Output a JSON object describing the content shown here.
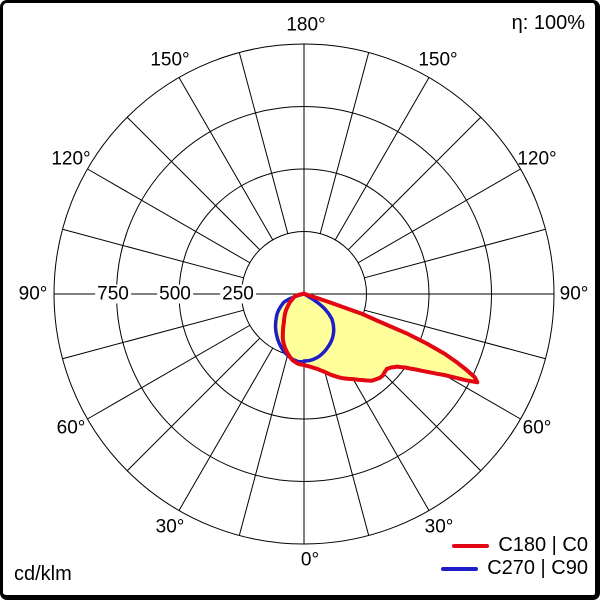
{
  "header": {
    "efficiency": "η: 100%"
  },
  "footer": {
    "unit": "cd/klm"
  },
  "legend": {
    "items": [
      {
        "label": "C180 | C0",
        "color": "#e30613"
      },
      {
        "label": "C270 | C90",
        "color": "#1e1ec8"
      }
    ]
  },
  "polar": {
    "angle_labels": [
      "180°",
      "150°",
      "120°",
      "90°",
      "60°",
      "30°",
      "0°"
    ],
    "scale_labels": [
      "750",
      "500",
      "250"
    ],
    "grid_color": "#000000",
    "fill_color": "#ffff9c"
  },
  "chart_data": {
    "type": "polar-photometric",
    "unit": "cd/klm",
    "efficiency_label": "η: 100%",
    "radial_axis": {
      "ticks": [
        250,
        500,
        750,
        1000
      ],
      "max": 1000
    },
    "angle_grid_step_deg": 15,
    "angle_tick_labels_deg": [
      0,
      30,
      60,
      90,
      120,
      150,
      180
    ],
    "legend_position": "bottom-right",
    "series": [
      {
        "name": "C180 | C0",
        "color": "#e30613",
        "fill": "#ffff9c",
        "stroke_width": 4,
        "planes": {
          "right": "C0",
          "left": "C180"
        },
        "right_points_gamma_cd": [
          [
            0,
            284
          ],
          [
            5,
            292
          ],
          [
            10,
            304
          ],
          [
            15,
            323
          ],
          [
            20,
            348
          ],
          [
            25,
            372
          ],
          [
            30,
            393
          ],
          [
            34,
            415
          ],
          [
            38,
            440
          ],
          [
            42,
            452
          ],
          [
            44,
            454
          ],
          [
            46,
            449
          ],
          [
            48,
            447
          ],
          [
            50,
            457
          ],
          [
            52,
            472
          ],
          [
            54,
            500
          ],
          [
            56,
            540
          ],
          [
            58,
            590
          ],
          [
            60,
            648
          ],
          [
            61,
            690
          ],
          [
            62,
            735
          ],
          [
            63,
            778
          ],
          [
            64,
            760
          ],
          [
            65,
            715
          ],
          [
            66,
            665
          ],
          [
            67,
            610
          ],
          [
            68,
            530
          ],
          [
            69,
            440
          ],
          [
            70,
            310
          ],
          [
            71,
            250
          ],
          [
            72,
            110
          ],
          [
            73,
            55
          ],
          [
            74,
            22
          ],
          [
            76,
            10
          ],
          [
            80,
            6
          ],
          [
            90,
            4
          ],
          [
            105,
            2
          ],
          [
            130,
            1
          ],
          [
            160,
            1
          ],
          [
            180,
            0
          ]
        ],
        "left_points_gamma_cd": [
          [
            0,
            284
          ],
          [
            5,
            280
          ],
          [
            10,
            268
          ],
          [
            15,
            248
          ],
          [
            20,
            226
          ],
          [
            25,
            200
          ],
          [
            30,
            168
          ],
          [
            35,
            140
          ],
          [
            40,
            122
          ],
          [
            45,
            106
          ],
          [
            50,
            90
          ],
          [
            55,
            76
          ],
          [
            60,
            64
          ],
          [
            65,
            52
          ],
          [
            70,
            45
          ],
          [
            74,
            40
          ],
          [
            78,
            30
          ],
          [
            82,
            18
          ],
          [
            86,
            10
          ],
          [
            90,
            6
          ],
          [
            110,
            3
          ],
          [
            140,
            1
          ],
          [
            180,
            0
          ]
        ]
      },
      {
        "name": "C270 | C90",
        "color": "#1e1ec8",
        "fill": "#ffff9c",
        "stroke_width": 3.5,
        "planes": {
          "right": "C90",
          "left": "C270"
        },
        "right_points_gamma_cd": [
          [
            0,
            268
          ],
          [
            5,
            267
          ],
          [
            10,
            262
          ],
          [
            15,
            254
          ],
          [
            20,
            243
          ],
          [
            25,
            231
          ],
          [
            30,
            218
          ],
          [
            35,
            203
          ],
          [
            40,
            185
          ],
          [
            44,
            168
          ],
          [
            48,
            150
          ],
          [
            52,
            122
          ],
          [
            55,
            96
          ],
          [
            57,
            72
          ],
          [
            59,
            46
          ],
          [
            61,
            22
          ],
          [
            63,
            10
          ],
          [
            66,
            5
          ],
          [
            75,
            3
          ],
          [
            90,
            2
          ],
          [
            120,
            1
          ],
          [
            180,
            0
          ]
        ],
        "left_points_gamma_cd": [
          [
            0,
            272
          ],
          [
            5,
            271
          ],
          [
            10,
            265
          ],
          [
            15,
            254
          ],
          [
            20,
            241
          ],
          [
            25,
            226
          ],
          [
            30,
            210
          ],
          [
            35,
            193
          ],
          [
            40,
            177
          ],
          [
            45,
            160
          ],
          [
            50,
            144
          ],
          [
            55,
            129
          ],
          [
            60,
            112
          ],
          [
            64,
            98
          ],
          [
            68,
            86
          ],
          [
            70,
            72
          ],
          [
            72,
            52
          ],
          [
            74,
            32
          ],
          [
            76,
            14
          ],
          [
            78,
            6
          ],
          [
            82,
            3
          ],
          [
            90,
            2
          ],
          [
            120,
            1
          ],
          [
            180,
            0
          ]
        ]
      }
    ]
  }
}
